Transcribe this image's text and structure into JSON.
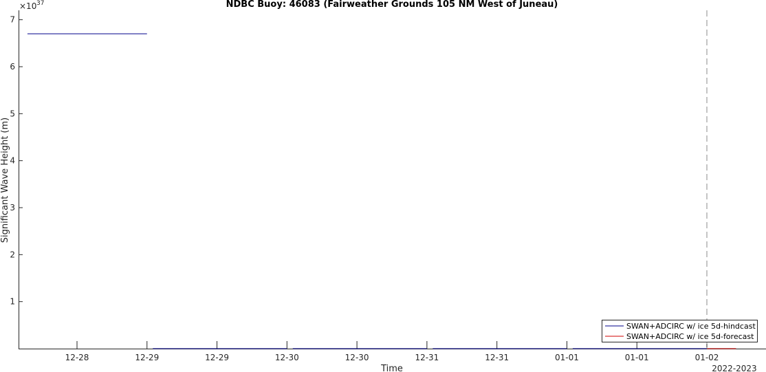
{
  "chart_data": {
    "type": "line",
    "title": "NDBC Buoy: 46083 (Fairweather Grounds 105 NM West of Juneau)",
    "xlabel": "Time",
    "ylabel": "Significant Wave Height (m)",
    "y_exponent_label": "×10",
    "y_exponent_value": "37",
    "year_label": "2022-2023",
    "ylim": [
      0,
      7.2
    ],
    "y_ticks": [
      1,
      2,
      3,
      4,
      5,
      6,
      7
    ],
    "y_tick_labels": [
      "1",
      "2",
      "3",
      "4",
      "5",
      "6",
      "7"
    ],
    "x_range_hours": [
      -5,
      213
    ],
    "x_ticks": [
      {
        "hour": 12,
        "label": "12-28"
      },
      {
        "hour": 36,
        "label": "12-29"
      },
      {
        "hour": 60,
        "label": "12-29"
      },
      {
        "hour": 84,
        "label": "12-30"
      },
      {
        "hour": 108,
        "label": "12-30"
      },
      {
        "hour": 132,
        "label": "12-31"
      },
      {
        "hour": 156,
        "label": "12-31"
      },
      {
        "hour": 180,
        "label": "01-01"
      },
      {
        "hour": 204,
        "label": "01-01"
      },
      {
        "hour": 228,
        "label": "01-02"
      }
    ],
    "forecast_start_hour": 228,
    "series": [
      {
        "name": "SWAN+ADCIRC w/ ice 5d-hindcast",
        "color": "#00008b",
        "segments": [
          {
            "x": [
              -5,
              36
            ],
            "y": [
              6.7,
              6.7
            ]
          },
          {
            "x": [
              38,
              84
            ],
            "y": [
              0,
              0
            ]
          },
          {
            "x": [
              86,
              132
            ],
            "y": [
              0,
              0
            ]
          },
          {
            "x": [
              134,
              180
            ],
            "y": [
              0,
              0
            ]
          },
          {
            "x": [
              182,
              228
            ],
            "y": [
              0,
              0
            ]
          }
        ]
      },
      {
        "name": "SWAN+ADCIRC w/ ice 5d-forecast",
        "color": "#d00000",
        "segments": [
          {
            "x": [
              228,
              238
            ],
            "y": [
              0,
              0
            ]
          }
        ]
      }
    ],
    "grid": false,
    "legend_position": "bottom-right"
  }
}
